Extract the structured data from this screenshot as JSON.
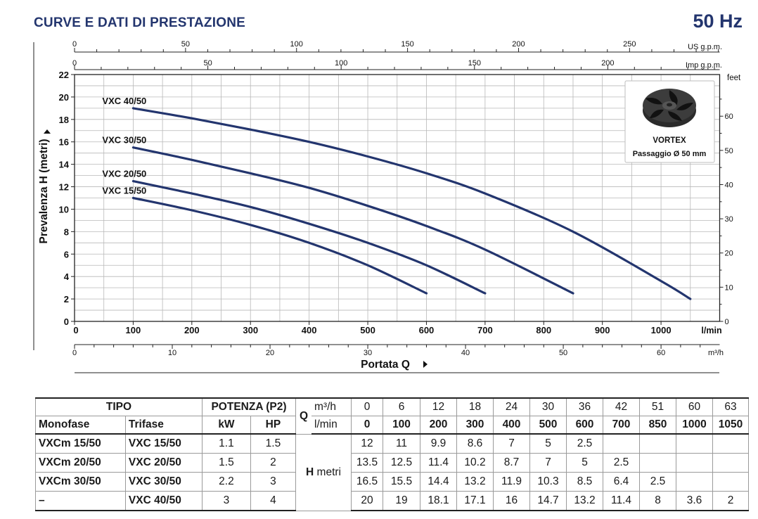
{
  "header": {
    "title": "CURVE E DATI DI PRESTAZIONE",
    "frequency": "50 Hz"
  },
  "chart_data": {
    "type": "line",
    "xlabel": "Portata Q",
    "ylabel": "Prevalenza H (metri)",
    "x_unit": "l/min",
    "right_unit": "feet",
    "top_unit_us": "US g.p.m.",
    "top_unit_imp": "Imp g.p.m.",
    "bottom_unit_m3h": "m³/h",
    "xlim": [
      0,
      1100
    ],
    "ylim": [
      0,
      22
    ],
    "grid": true,
    "x_ticks": [
      "0",
      "100",
      "200",
      "300",
      "400",
      "500",
      "600",
      "700",
      "800",
      "900",
      "1000"
    ],
    "y_ticks": [
      "0",
      "2",
      "4",
      "6",
      "8",
      "10",
      "12",
      "14",
      "16",
      "18",
      "20",
      "22"
    ],
    "feet_ticks": [
      "0",
      "10",
      "20",
      "30",
      "40",
      "50",
      "60"
    ],
    "us_gpm_ticks": [
      "0",
      "50",
      "100",
      "150",
      "200",
      "250"
    ],
    "imp_gpm_ticks": [
      "0",
      "50",
      "100",
      "150",
      "200"
    ],
    "m3h_ticks": [
      "0",
      "10",
      "20",
      "30",
      "40",
      "50",
      "60"
    ],
    "series": [
      {
        "name": "VXC 40/50",
        "x": [
          100,
          200,
          300,
          400,
          500,
          600,
          700,
          850,
          1000,
          1050
        ],
        "y": [
          19,
          18.1,
          17.1,
          16,
          14.7,
          13.2,
          11.4,
          8,
          3.6,
          2
        ]
      },
      {
        "name": "VXC 30/50",
        "x": [
          100,
          200,
          300,
          400,
          500,
          600,
          700,
          850
        ],
        "y": [
          15.5,
          14.4,
          13.2,
          11.9,
          10.3,
          8.5,
          6.4,
          2.5
        ]
      },
      {
        "name": "VXC 20/50",
        "x": [
          100,
          200,
          300,
          400,
          500,
          600,
          700
        ],
        "y": [
          12.5,
          11.4,
          10.2,
          8.7,
          7,
          5,
          2.5
        ]
      },
      {
        "name": "VXC 15/50",
        "x": [
          100,
          200,
          300,
          400,
          500,
          600
        ],
        "y": [
          11,
          9.9,
          8.6,
          7,
          5,
          2.5
        ]
      }
    ],
    "series_color": "#23356e",
    "grid_color": "#b8b8b8"
  },
  "vortex_box": {
    "label": "VORTEX",
    "passage": "Passaggio Ø 50 mm"
  },
  "table": {
    "tipo": "TIPO",
    "potenza": "POTENZA (P2)",
    "q_label": "Q",
    "m3h_unit": "m³/h",
    "lmin_unit": "l/min",
    "monofase": "Monofase",
    "trifase": "Trifase",
    "kw": "kW",
    "hp": "HP",
    "h_label": "H",
    "h_unit": "metri",
    "m3h_values": [
      "0",
      "6",
      "12",
      "18",
      "24",
      "30",
      "36",
      "42",
      "51",
      "60",
      "63"
    ],
    "lmin_values": [
      "0",
      "100",
      "200",
      "300",
      "400",
      "500",
      "600",
      "700",
      "850",
      "1000",
      "1050"
    ],
    "rows": [
      {
        "mono": "VXCm 15/50",
        "tri": "VXC 15/50",
        "kw": "1.1",
        "hp": "1.5",
        "h": [
          "12",
          "11",
          "9.9",
          "8.6",
          "7",
          "5",
          "2.5",
          "",
          "",
          "",
          ""
        ]
      },
      {
        "mono": "VXCm 20/50",
        "tri": "VXC 20/50",
        "kw": "1.5",
        "hp": "2",
        "h": [
          "13.5",
          "12.5",
          "11.4",
          "10.2",
          "8.7",
          "7",
          "5",
          "2.5",
          "",
          "",
          ""
        ]
      },
      {
        "mono": "VXCm 30/50",
        "tri": "VXC 30/50",
        "kw": "2.2",
        "hp": "3",
        "h": [
          "16.5",
          "15.5",
          "14.4",
          "13.2",
          "11.9",
          "10.3",
          "8.5",
          "6.4",
          "2.5",
          "",
          ""
        ]
      },
      {
        "mono": "–",
        "tri": "VXC 40/50",
        "kw": "3",
        "hp": "4",
        "h": [
          "20",
          "19",
          "18.1",
          "17.1",
          "16",
          "14.7",
          "13.2",
          "11.4",
          "8",
          "3.6",
          "2"
        ]
      }
    ]
  }
}
